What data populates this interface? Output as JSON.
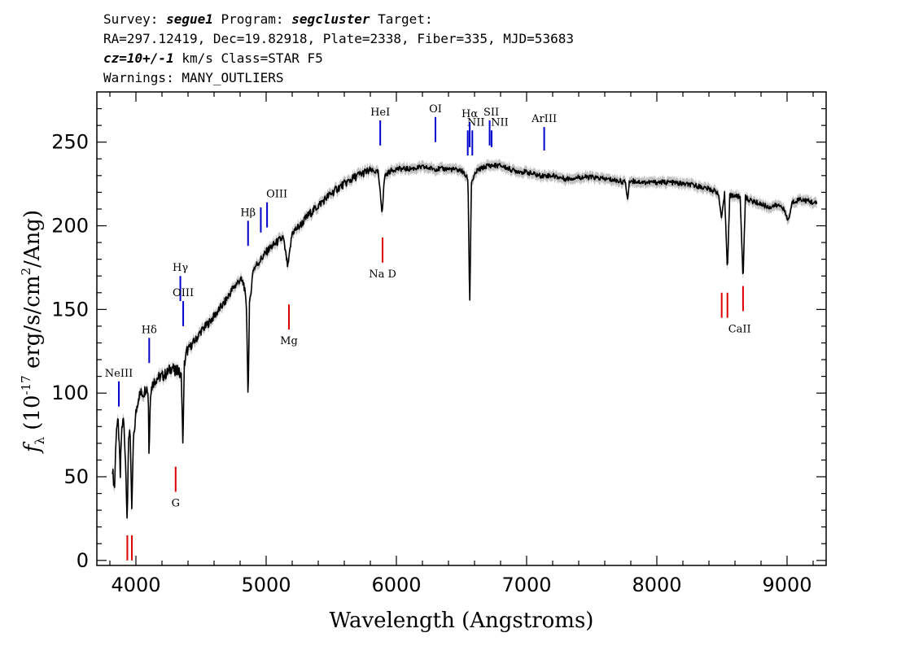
{
  "header": {
    "survey_label": "Survey: ",
    "survey": "segue1",
    "program_label": " Program: ",
    "program": "segcluster",
    "target_label": " Target:",
    "line2": "RA=297.12419, Dec=19.82918, Plate=2338, Fiber=335, MJD=53683",
    "cz": "cz=10+/-1",
    "line3_rest": " km/s Class=STAR F5",
    "line4": "Warnings: MANY_OUTLIERS"
  },
  "chart_data": {
    "type": "line",
    "xlabel": "Wavelength (Angstroms)",
    "ylabel": "f_λ (10^-17 erg/s/cm^2/Ang)",
    "xlim": [
      3700,
      9300
    ],
    "ylim": [
      -3,
      280
    ],
    "xticks": [
      4000,
      5000,
      6000,
      7000,
      8000,
      9000
    ],
    "yticks": [
      0,
      50,
      100,
      150,
      200,
      250
    ],
    "colors": {
      "flux": "#000000",
      "error": "#c0c0c0",
      "emission": "#0000cc",
      "absorption": "#dd0000"
    },
    "spectrum_points": [
      [
        3820,
        55
      ],
      [
        3835,
        42
      ],
      [
        3850,
        80
      ],
      [
        3865,
        82
      ],
      [
        3880,
        50
      ],
      [
        3890,
        78
      ],
      [
        3905,
        85
      ],
      [
        3920,
        60
      ],
      [
        3933,
        25
      ],
      [
        3945,
        75
      ],
      [
        3955,
        80
      ],
      [
        3968,
        28
      ],
      [
        3980,
        70
      ],
      [
        4000,
        88
      ],
      [
        4020,
        98
      ],
      [
        4040,
        100
      ],
      [
        4060,
        100
      ],
      [
        4080,
        104
      ],
      [
        4095,
        100
      ],
      [
        4101,
        58
      ],
      [
        4110,
        100
      ],
      [
        4130,
        106
      ],
      [
        4160,
        109
      ],
      [
        4200,
        110
      ],
      [
        4240,
        112
      ],
      [
        4280,
        116
      ],
      [
        4300,
        112
      ],
      [
        4320,
        115
      ],
      [
        4340,
        110
      ],
      [
        4350,
        110
      ],
      [
        4360,
        68
      ],
      [
        4372,
        117
      ],
      [
        4390,
        125
      ],
      [
        4420,
        128
      ],
      [
        4460,
        132
      ],
      [
        4500,
        137
      ],
      [
        4560,
        142
      ],
      [
        4620,
        148
      ],
      [
        4680,
        154
      ],
      [
        4740,
        162
      ],
      [
        4800,
        168
      ],
      [
        4830,
        165
      ],
      [
        4850,
        150
      ],
      [
        4861,
        95
      ],
      [
        4872,
        152
      ],
      [
        4900,
        174
      ],
      [
        4960,
        180
      ],
      [
        5020,
        186
      ],
      [
        5080,
        190
      ],
      [
        5130,
        193
      ],
      [
        5167,
        175
      ],
      [
        5200,
        196
      ],
      [
        5260,
        200
      ],
      [
        5320,
        206
      ],
      [
        5400,
        212
      ],
      [
        5480,
        218
      ],
      [
        5560,
        223
      ],
      [
        5640,
        227
      ],
      [
        5700,
        230
      ],
      [
        5760,
        232
      ],
      [
        5800,
        233
      ],
      [
        5860,
        232
      ],
      [
        5890,
        208
      ],
      [
        5910,
        230
      ],
      [
        5960,
        233
      ],
      [
        6000,
        234
      ],
      [
        6100,
        234
      ],
      [
        6200,
        235
      ],
      [
        6300,
        234
      ],
      [
        6400,
        234
      ],
      [
        6500,
        233
      ],
      [
        6550,
        228
      ],
      [
        6563,
        150
      ],
      [
        6576,
        226
      ],
      [
        6620,
        233
      ],
      [
        6700,
        236
      ],
      [
        6800,
        236
      ],
      [
        6900,
        233
      ],
      [
        7000,
        232
      ],
      [
        7100,
        230
      ],
      [
        7200,
        230
      ],
      [
        7300,
        228
      ],
      [
        7400,
        229
      ],
      [
        7500,
        229
      ],
      [
        7600,
        228
      ],
      [
        7700,
        227
      ],
      [
        7760,
        226
      ],
      [
        7775,
        215
      ],
      [
        7790,
        227
      ],
      [
        7900,
        226
      ],
      [
        8000,
        226
      ],
      [
        8100,
        226
      ],
      [
        8200,
        225
      ],
      [
        8300,
        224
      ],
      [
        8400,
        222
      ],
      [
        8470,
        220
      ],
      [
        8498,
        204
      ],
      [
        8520,
        219
      ],
      [
        8542,
        174
      ],
      [
        8560,
        218
      ],
      [
        8600,
        218
      ],
      [
        8640,
        217
      ],
      [
        8662,
        168
      ],
      [
        8680,
        217
      ],
      [
        8720,
        215
      ],
      [
        8760,
        214
      ],
      [
        8800,
        213
      ],
      [
        8860,
        211
      ],
      [
        8900,
        212
      ],
      [
        8960,
        212
      ],
      [
        9010,
        203
      ],
      [
        9040,
        214
      ],
      [
        9100,
        216
      ],
      [
        9150,
        215
      ],
      [
        9200,
        214
      ],
      [
        9230,
        213
      ]
    ],
    "emission_lines": [
      {
        "label": "NeIII",
        "x": 3869,
        "y0": 92,
        "y1": 107
      },
      {
        "label": "Hδ",
        "x": 4102,
        "y0": 118,
        "y1": 133
      },
      {
        "label": "Hγ",
        "x": 4341,
        "y0": 155,
        "y1": 170
      },
      {
        "label": "OIII",
        "x": 4363,
        "y0": 140,
        "y1": 155
      },
      {
        "label": "Hβ",
        "x": 4861,
        "y0": 188,
        "y1": 203
      },
      {
        "label": "",
        "x": 4959,
        "y0": 196,
        "y1": 211
      },
      {
        "label": "OIII",
        "x": 5007,
        "y0": 199,
        "y1": 214
      },
      {
        "label": "HeI",
        "x": 5876,
        "y0": 248,
        "y1": 263
      },
      {
        "label": "OI",
        "x": 6300,
        "y0": 250,
        "y1": 265
      },
      {
        "label": "NII",
        "x": 6548,
        "y0": 242,
        "y1": 257
      },
      {
        "label": "Hα",
        "x": 6563,
        "y0": 247,
        "y1": 262
      },
      {
        "label": "",
        "x": 6583,
        "y0": 242,
        "y1": 257
      },
      {
        "label": "SII",
        "x": 6716,
        "y0": 248,
        "y1": 263
      },
      {
        "label": "NII",
        "x": 6731,
        "y0": 247,
        "y1": 257
      },
      {
        "label": "ArIII",
        "x": 7135,
        "y0": 245,
        "y1": 259
      }
    ],
    "absorption_lines": [
      {
        "label": "",
        "x": 3934,
        "y0": 0,
        "y1": 15
      },
      {
        "label": "",
        "x": 3969,
        "y0": 0,
        "y1": 15
      },
      {
        "label": "G",
        "x": 4305,
        "y0": 41,
        "y1": 56
      },
      {
        "label": "Mg",
        "x": 5175,
        "y0": 138,
        "y1": 153
      },
      {
        "label": "Na D",
        "x": 5894,
        "y0": 178,
        "y1": 193
      },
      {
        "label": "CaII",
        "x": 8498,
        "y0": 145,
        "y1": 160
      },
      {
        "label": "",
        "x": 8542,
        "y0": 145,
        "y1": 160
      },
      {
        "label": "",
        "x": 8662,
        "y0": 149,
        "y1": 164
      }
    ]
  }
}
